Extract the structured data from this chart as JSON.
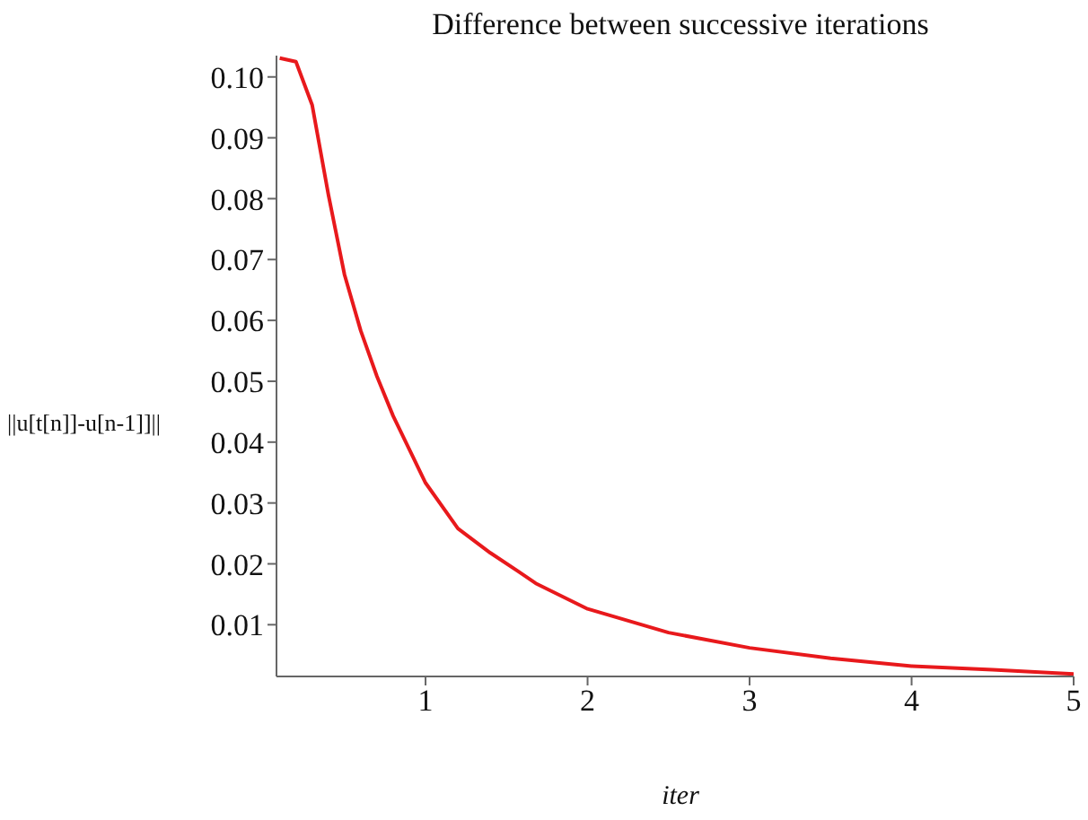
{
  "chart_data": {
    "type": "line",
    "title": "Difference between successive iterations",
    "xlabel": "iter",
    "ylabel": "||u[t[n]]-u[n-1]]||",
    "x": [
      0.1,
      0.2,
      0.3,
      0.4,
      0.5,
      0.6,
      0.7,
      0.8,
      1.0,
      1.2,
      1.4,
      1.57,
      1.68,
      2.0,
      2.5,
      3.0,
      3.5,
      4.0,
      4.5,
      5.0
    ],
    "series": [
      {
        "color": "#e8191c",
        "values": [
          0.1031,
          0.1025,
          0.0954,
          0.0807,
          0.0675,
          0.0583,
          0.0508,
          0.0443,
          0.0333,
          0.0258,
          0.0218,
          0.0188,
          0.0168,
          0.0126,
          0.0087,
          0.0062,
          0.0045,
          0.0032,
          0.0026,
          0.0019
        ]
      }
    ],
    "xlim": [
      0.08,
      5
    ],
    "xticks": [
      1,
      2,
      3,
      4,
      5
    ],
    "ylim": [
      0.0015,
      0.1035
    ],
    "yticks": [
      0.01,
      0.02,
      0.03,
      0.04,
      0.05,
      0.06,
      0.07,
      0.08,
      0.09,
      {
        "value": 0.1,
        "label": "0.10"
      }
    ],
    "grid": false,
    "legend": false,
    "marker": "none",
    "line_style": "solid"
  }
}
